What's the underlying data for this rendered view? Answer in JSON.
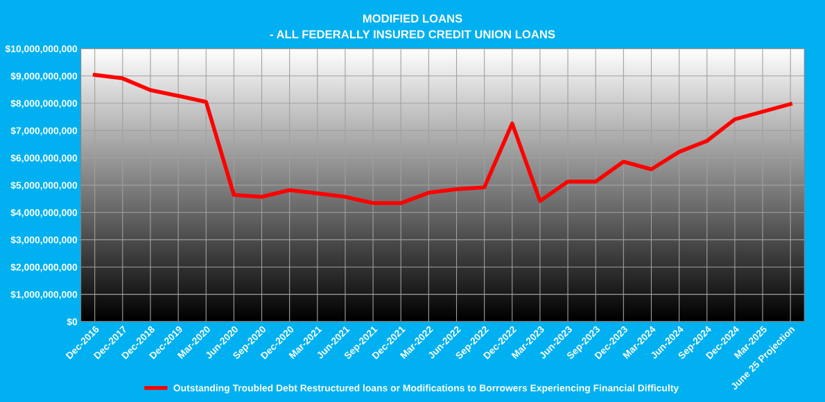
{
  "chart_data": {
    "type": "line",
    "title": "MODIFIED LOANS\n- ALL FEDERALLY INSURED CREDIT UNION LOANS",
    "categories": [
      "Dec-2016",
      "Dec-2017",
      "Dec-2018",
      "Dec-2019",
      "Mar-2020",
      "Jun-2020",
      "Sep-2020",
      "Dec-2020",
      "Mar-2021",
      "Jun-2021",
      "Sep-2021",
      "Dec-2021",
      "Mar-2022",
      "Jun-2022",
      "Sep-2022",
      "Dec-2022",
      "Mar-2023",
      "Jun-2023",
      "Sep-2023",
      "Dec-2023",
      "Mar-2024",
      "Jun-2024",
      "Sep-2024",
      "Dec-2024",
      "Mar-2025",
      "June 25 Projection"
    ],
    "series": [
      {
        "name": "Outstanding Troubled Debt Restructured loans or Modifications to Borrowers Experiencing Financial Difficulty",
        "color": "#ff0000",
        "values": [
          9040000000,
          8910000000,
          8480000000,
          8270000000,
          8050000000,
          4640000000,
          4570000000,
          4820000000,
          4700000000,
          4570000000,
          4340000000,
          4340000000,
          4720000000,
          4850000000,
          4920000000,
          7260000000,
          4420000000,
          5130000000,
          5130000000,
          5860000000,
          5580000000,
          6220000000,
          6620000000,
          7410000000,
          7690000000,
          7970000000
        ]
      }
    ],
    "ylim": [
      0,
      10000000000
    ],
    "yticks": [
      {
        "value": 0,
        "label": "$0"
      },
      {
        "value": 1000000000,
        "label": "$1,000,000,000"
      },
      {
        "value": 2000000000,
        "label": "$2,000,000,000"
      },
      {
        "value": 3000000000,
        "label": "$3,000,000,000"
      },
      {
        "value": 4000000000,
        "label": "$4,000,000,000"
      },
      {
        "value": 5000000000,
        "label": "$5,000,000,000"
      },
      {
        "value": 6000000000,
        "label": "$6,000,000,000"
      },
      {
        "value": 7000000000,
        "label": "$7,000,000,000"
      },
      {
        "value": 8000000000,
        "label": "$8,000,000,000"
      },
      {
        "value": 9000000000,
        "label": "$9,000,000,000"
      },
      {
        "value": 10000000000,
        "label": "$10,000,000,000"
      }
    ],
    "grid": true,
    "legend": "bottom",
    "marker": "none",
    "line_style": "solid"
  }
}
